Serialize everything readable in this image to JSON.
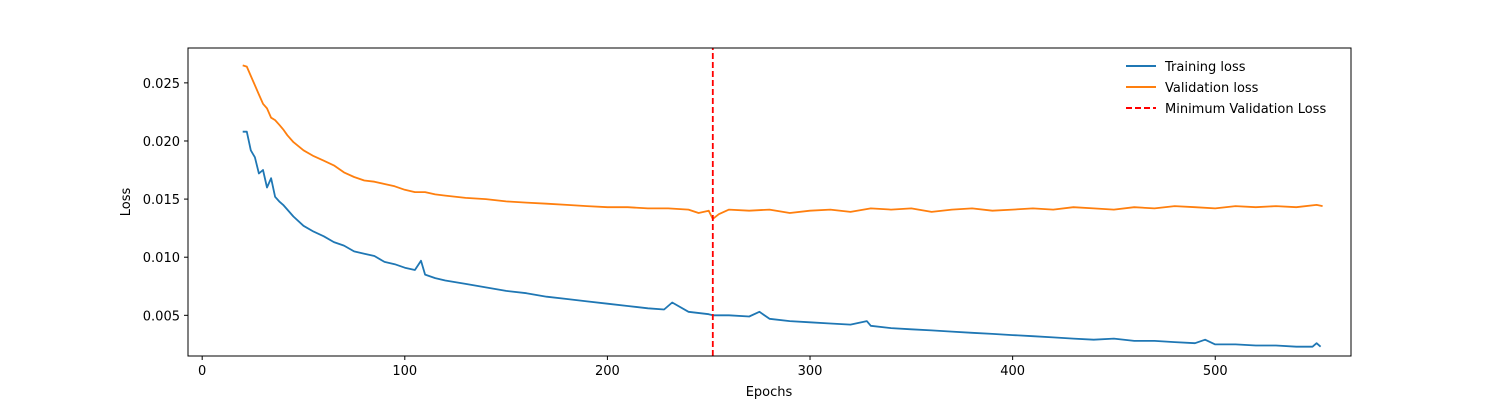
{
  "chart_data": {
    "type": "line",
    "title": "",
    "xlabel": "Epochs",
    "ylabel": "Loss",
    "xlim": [
      -7,
      567
    ],
    "ylim": [
      0.0015,
      0.028
    ],
    "xticks": [
      0,
      100,
      200,
      300,
      400,
      500
    ],
    "yticks": [
      0.005,
      0.01,
      0.015,
      0.02,
      0.025
    ],
    "xtick_labels": [
      "0",
      "100",
      "200",
      "300",
      "400",
      "500"
    ],
    "ytick_labels": [
      "0.005",
      "0.010",
      "0.015",
      "0.020",
      "0.025"
    ],
    "grid": false,
    "legend_position": "top-right",
    "series": [
      {
        "name": "Training loss",
        "color": "#1f77b4",
        "style": "solid",
        "x": [
          20,
          22,
          24,
          26,
          28,
          30,
          32,
          34,
          36,
          38,
          40,
          45,
          50,
          55,
          60,
          65,
          70,
          75,
          80,
          85,
          90,
          95,
          100,
          105,
          108,
          110,
          115,
          120,
          130,
          140,
          150,
          160,
          170,
          180,
          190,
          200,
          210,
          220,
          228,
          232,
          240,
          250,
          252,
          260,
          270,
          275,
          280,
          290,
          300,
          310,
          320,
          328,
          330,
          340,
          350,
          360,
          370,
          380,
          390,
          400,
          410,
          420,
          430,
          440,
          450,
          460,
          470,
          480,
          490,
          495,
          500,
          510,
          520,
          530,
          540,
          548,
          550,
          552
        ],
        "y": [
          0.0208,
          0.0208,
          0.0192,
          0.0186,
          0.0172,
          0.0175,
          0.016,
          0.0168,
          0.0152,
          0.0148,
          0.0145,
          0.0135,
          0.0127,
          0.0122,
          0.0118,
          0.0113,
          0.011,
          0.0105,
          0.0103,
          0.0101,
          0.0096,
          0.0094,
          0.0091,
          0.0089,
          0.0097,
          0.0085,
          0.0082,
          0.008,
          0.0077,
          0.0074,
          0.0071,
          0.0069,
          0.0066,
          0.0064,
          0.0062,
          0.006,
          0.0058,
          0.0056,
          0.0055,
          0.0061,
          0.0053,
          0.0051,
          0.005,
          0.005,
          0.0049,
          0.0053,
          0.0047,
          0.0045,
          0.0044,
          0.0043,
          0.0042,
          0.0045,
          0.0041,
          0.0039,
          0.0038,
          0.0037,
          0.0036,
          0.0035,
          0.0034,
          0.0033,
          0.0032,
          0.0031,
          0.003,
          0.0029,
          0.003,
          0.0028,
          0.0028,
          0.0027,
          0.0026,
          0.0029,
          0.0025,
          0.0025,
          0.0024,
          0.0024,
          0.0023,
          0.0023,
          0.0026,
          0.0023
        ]
      },
      {
        "name": "Validation loss",
        "color": "#ff7f0e",
        "style": "solid",
        "x": [
          20,
          22,
          24,
          26,
          28,
          30,
          32,
          34,
          36,
          38,
          40,
          42,
          45,
          50,
          55,
          60,
          65,
          70,
          75,
          80,
          85,
          90,
          95,
          100,
          105,
          110,
          115,
          120,
          130,
          140,
          150,
          160,
          170,
          180,
          190,
          200,
          210,
          220,
          230,
          240,
          245,
          250,
          252,
          255,
          260,
          270,
          280,
          290,
          300,
          310,
          320,
          330,
          340,
          350,
          360,
          370,
          380,
          390,
          400,
          410,
          420,
          430,
          440,
          450,
          460,
          470,
          480,
          490,
          500,
          510,
          520,
          530,
          540,
          550,
          553
        ],
        "y": [
          0.0265,
          0.0264,
          0.0256,
          0.0248,
          0.024,
          0.0232,
          0.0228,
          0.022,
          0.0218,
          0.0214,
          0.021,
          0.0205,
          0.0199,
          0.0192,
          0.0187,
          0.0183,
          0.0179,
          0.0173,
          0.0169,
          0.0166,
          0.0165,
          0.0163,
          0.0161,
          0.0158,
          0.0156,
          0.0156,
          0.0154,
          0.0153,
          0.0151,
          0.015,
          0.0148,
          0.0147,
          0.0146,
          0.0145,
          0.0144,
          0.0143,
          0.0143,
          0.0142,
          0.0142,
          0.0141,
          0.0138,
          0.014,
          0.0133,
          0.0137,
          0.0141,
          0.014,
          0.0141,
          0.0138,
          0.014,
          0.0141,
          0.0139,
          0.0142,
          0.0141,
          0.0142,
          0.0139,
          0.0141,
          0.0142,
          0.014,
          0.0141,
          0.0142,
          0.0141,
          0.0143,
          0.0142,
          0.0141,
          0.0143,
          0.0142,
          0.0144,
          0.0143,
          0.0142,
          0.0144,
          0.0143,
          0.0144,
          0.0143,
          0.0145,
          0.0144
        ]
      },
      {
        "name": "Minimum Validation Loss",
        "color": "#ff0000",
        "style": "dashed",
        "x": [
          252,
          252
        ],
        "y": [
          0.0015,
          0.028
        ]
      }
    ]
  }
}
